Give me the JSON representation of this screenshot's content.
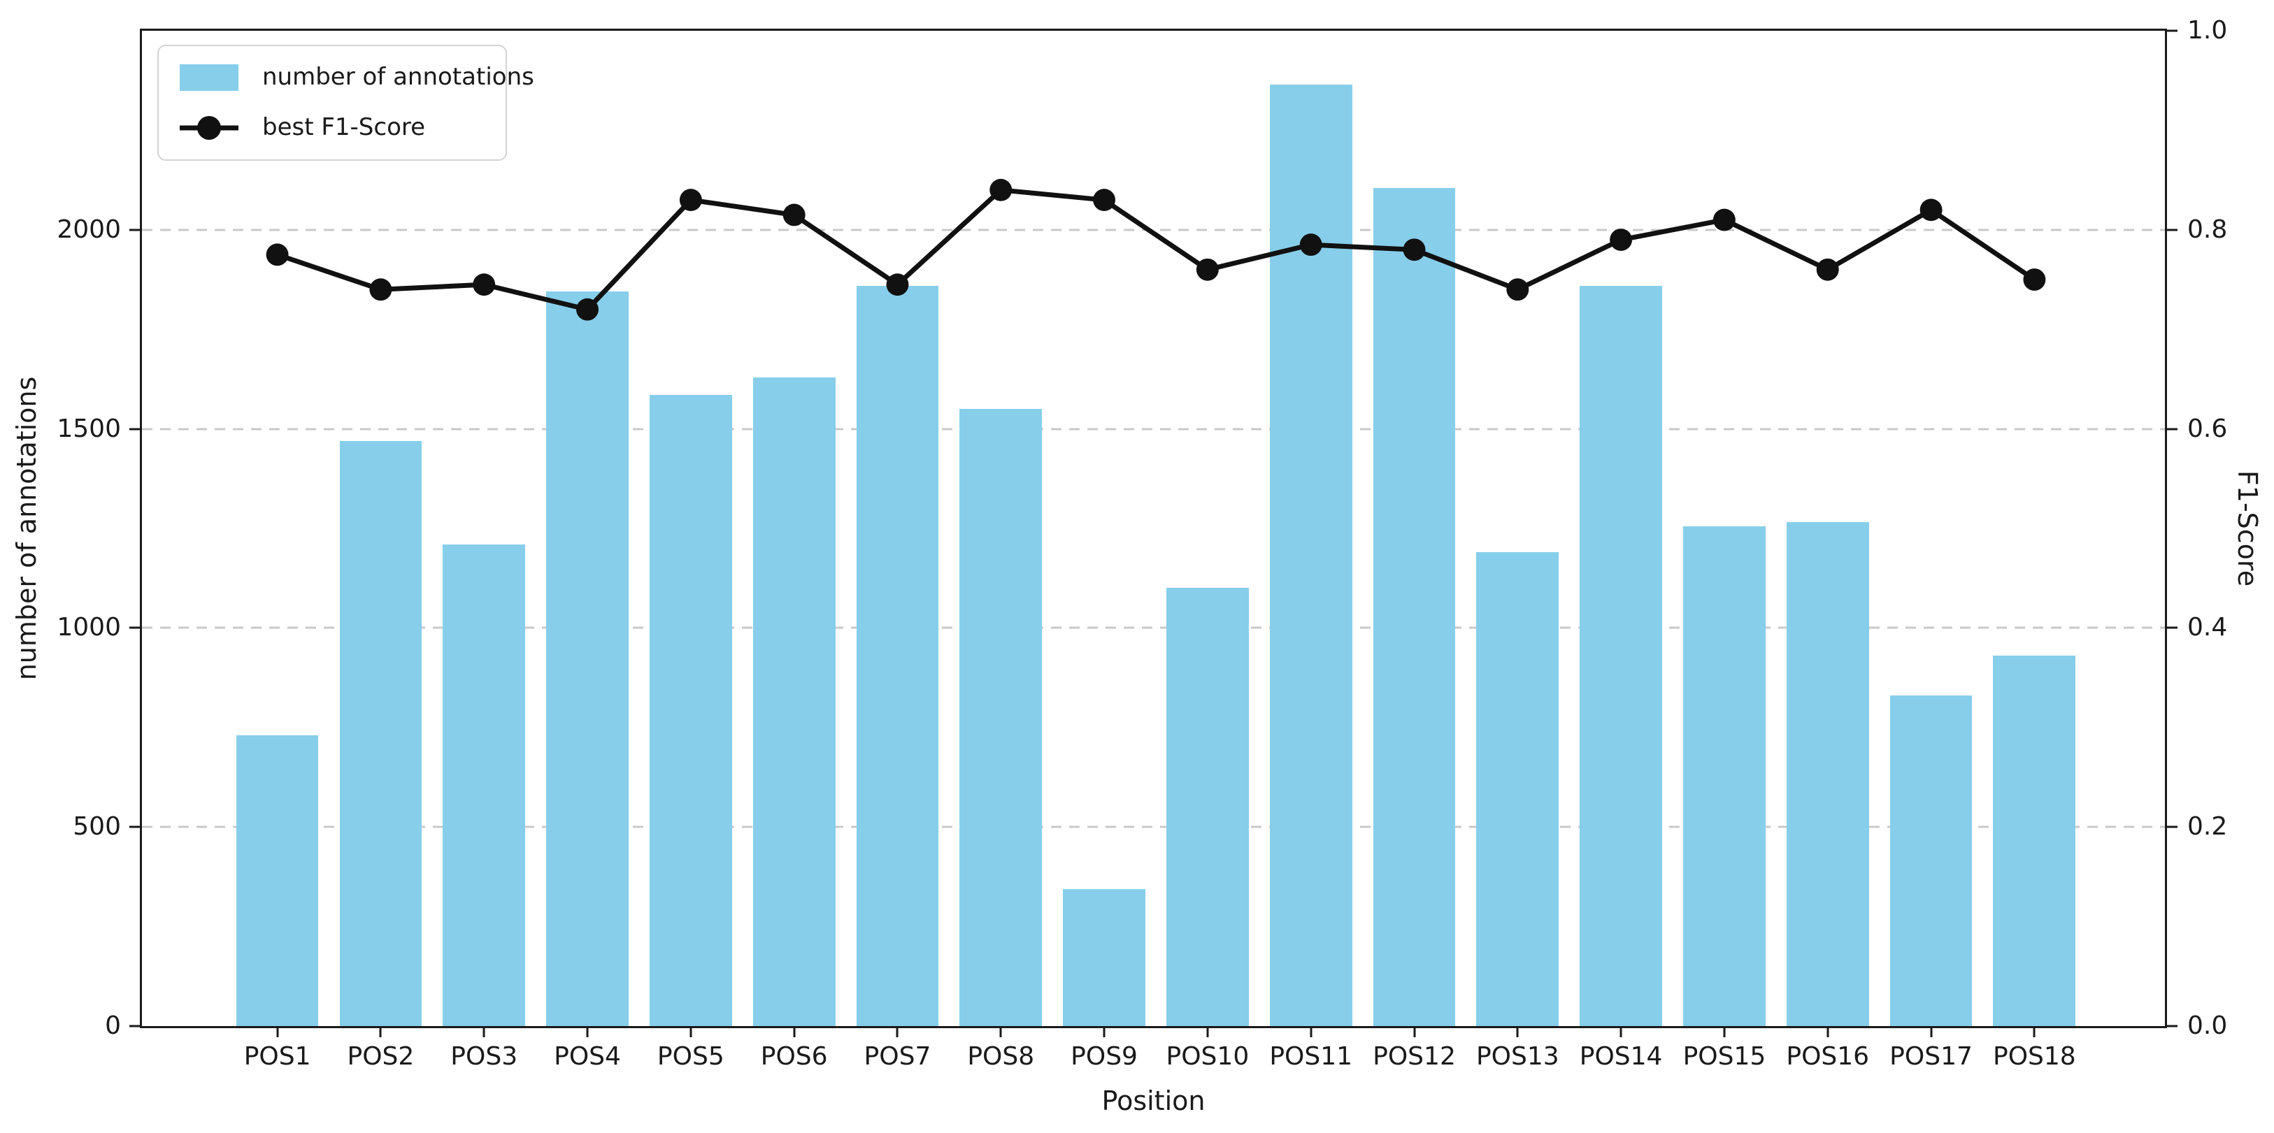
{
  "chart_data": {
    "type": "bar",
    "title": "",
    "categories": [
      "POS1",
      "POS2",
      "POS3",
      "POS4",
      "POS5",
      "POS6",
      "POS7",
      "POS8",
      "POS9",
      "POS10",
      "POS11",
      "POS12",
      "POS13",
      "POS14",
      "POS15",
      "POS16",
      "POS17",
      "POS18"
    ],
    "series": [
      {
        "name": "number of annotations",
        "type": "bar",
        "axis": "left",
        "color": "#87CEEB",
        "values": [
          730,
          1470,
          1210,
          1845,
          1585,
          1630,
          1860,
          1550,
          345,
          1100,
          2365,
          2105,
          1190,
          1860,
          1255,
          1265,
          830,
          930
        ]
      },
      {
        "name": "best F1-Score",
        "type": "line",
        "axis": "right",
        "color": "#111111",
        "marker": "circle",
        "values": [
          0.775,
          0.74,
          0.745,
          0.72,
          0.83,
          0.815,
          0.745,
          0.84,
          0.83,
          0.76,
          0.785,
          0.78,
          0.74,
          0.79,
          0.81,
          0.76,
          0.82,
          0.75
        ]
      }
    ],
    "xlabel": "Position",
    "ylabel_left": "number of annotations",
    "ylabel_right": "F1-Score",
    "ylim_left": [
      0,
      2500
    ],
    "ylim_right": [
      0.0,
      1.0
    ],
    "yticks_left": [
      0,
      500,
      1000,
      1500,
      2000
    ],
    "yticks_right_labels": [
      "0.0",
      "0.2",
      "0.4",
      "0.6",
      "0.8",
      "1.0"
    ],
    "grid": "horizontal dashed gridlines at left ticks 500/1000/1500/2000 (right 0.2/0.4/0.6/0.8)",
    "legend_position": "upper left",
    "colors": {
      "bar": "#87CEEB",
      "line": "#111111",
      "grid": "#c9c9c9",
      "frame": "#1a1a1a",
      "background": "#ffffff",
      "text": "#1a1a1a"
    }
  }
}
